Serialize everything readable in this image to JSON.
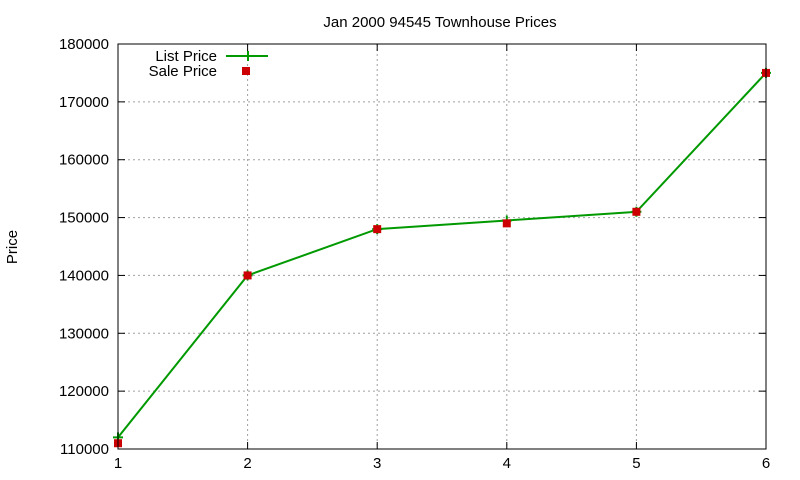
{
  "chart_data": {
    "type": "line",
    "title": "Jan 2000 94545 Townhouse Prices",
    "xlabel": "",
    "ylabel": "Price",
    "x": [
      1,
      2,
      3,
      4,
      5,
      6
    ],
    "xlim": [
      1,
      6
    ],
    "ylim": [
      110000,
      180000
    ],
    "xticks": [
      "1",
      "2",
      "3",
      "4",
      "5",
      "6"
    ],
    "yticks": [
      "110000",
      "120000",
      "130000",
      "140000",
      "150000",
      "160000",
      "170000",
      "180000"
    ],
    "grid": true,
    "legend_position": "top-left",
    "series": [
      {
        "name": "List Price",
        "style": "line",
        "color": "#009900",
        "values": [
          112000,
          140000,
          148000,
          149500,
          151000,
          175000
        ]
      },
      {
        "name": "Sale Price",
        "style": "points",
        "color": "#cc0000",
        "values": [
          111000,
          140000,
          148000,
          149000,
          151000,
          175000
        ]
      }
    ]
  }
}
